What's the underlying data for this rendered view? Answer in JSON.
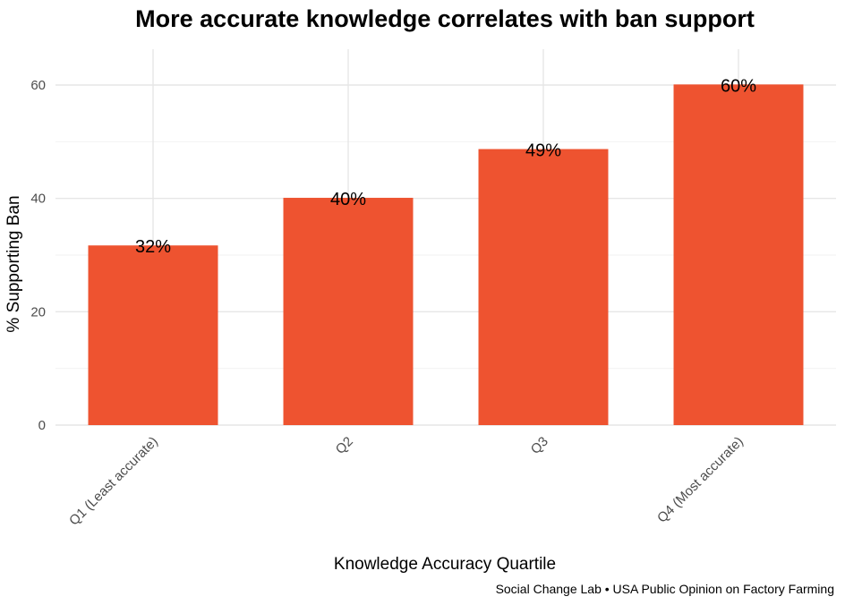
{
  "chart_data": {
    "type": "bar",
    "title": "More accurate knowledge correlates with ban support",
    "xlabel": "Knowledge Accuracy Quartile",
    "ylabel": "% Supporting Ban",
    "caption": "Social Change Lab • USA Public Opinion on Factory Farming",
    "categories": [
      "Q1 (Least accurate)",
      "Q2",
      "Q3",
      "Q4 (Most accurate)"
    ],
    "values": [
      31.7,
      40.1,
      48.7,
      60.1
    ],
    "data_labels": [
      "32%",
      "40%",
      "49%",
      "60%"
    ],
    "yticks": [
      0,
      20,
      40,
      60
    ],
    "ytick_labels": [
      "0",
      "20",
      "40",
      "60"
    ],
    "ylim": [
      0,
      63
    ],
    "grid": true,
    "legend": false,
    "bar_color": "#ee5330"
  }
}
